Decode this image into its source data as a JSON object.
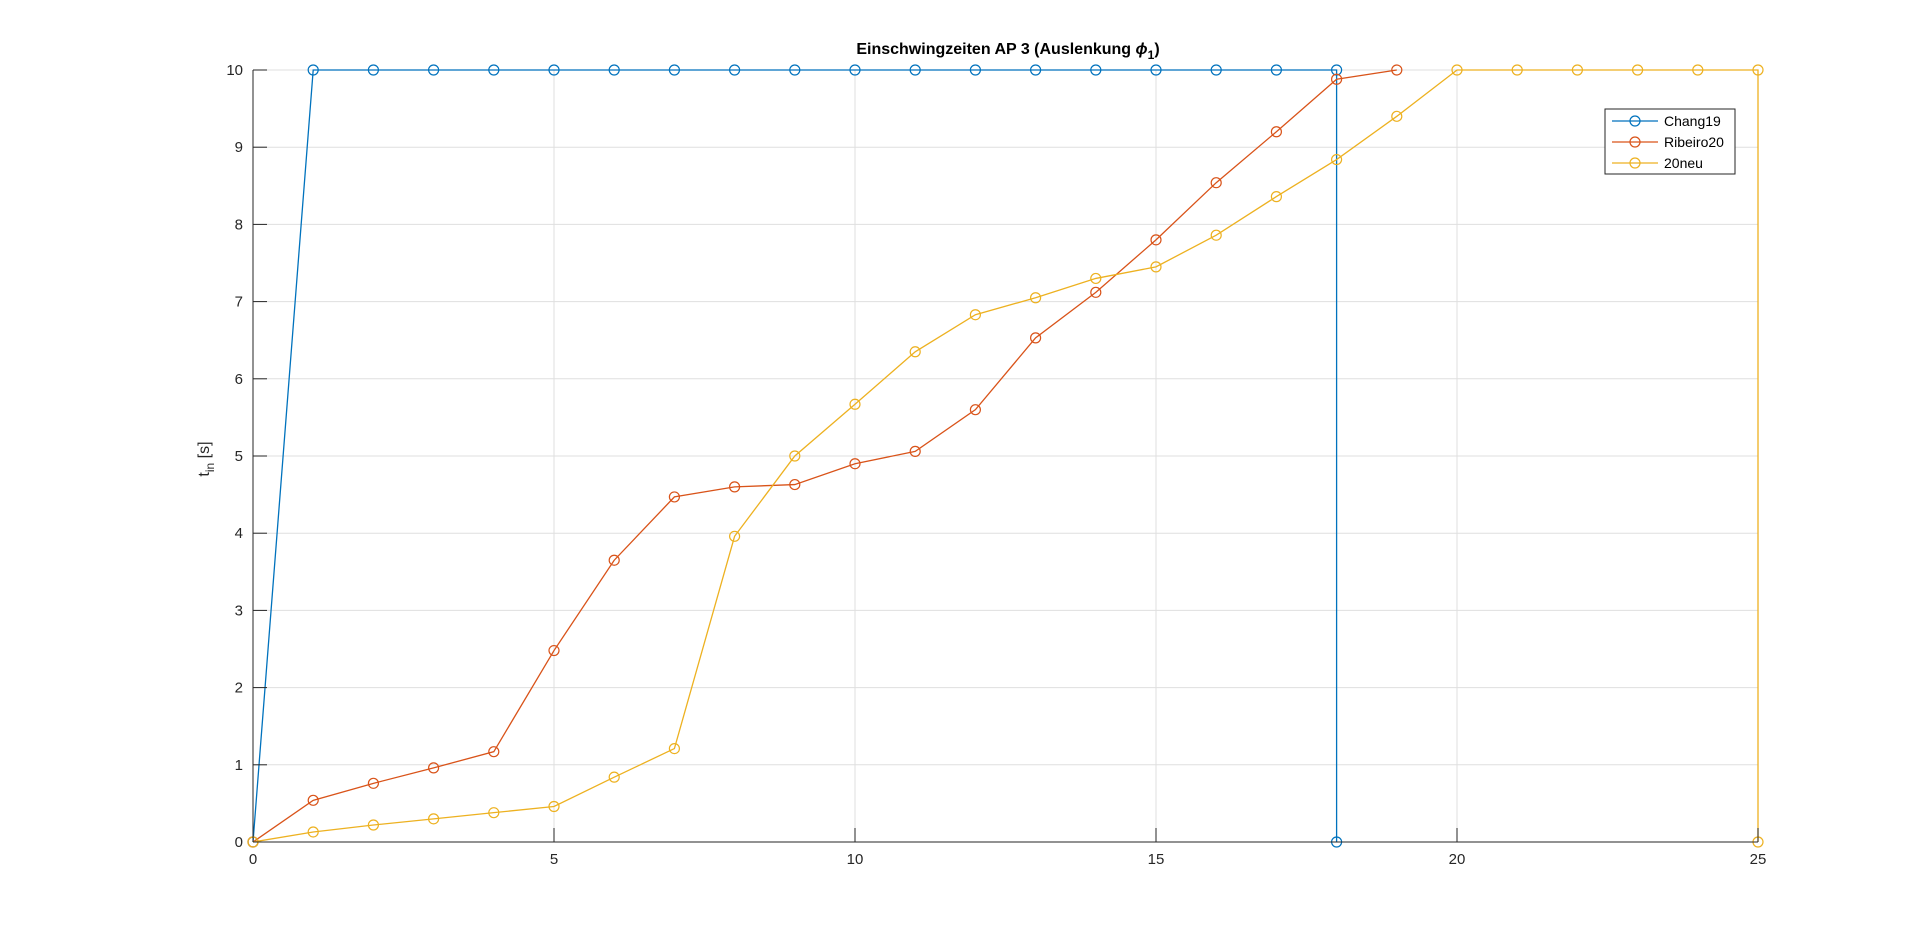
{
  "chart_data": {
    "type": "line",
    "title": "Einschwingzeiten AP 3 (Auslenkung ϕ₁)",
    "title_parts": {
      "main": "Einschwingzeiten AP 3 (Auslenkung ",
      "symbol": "ϕ",
      "subscript": "1",
      "close": ")"
    },
    "ylabel": "t_in [s]",
    "ylabel_parts": {
      "main": "t",
      "subscript": "in",
      "unit": " [s]"
    },
    "xlabel": "",
    "xlim": [
      0,
      25
    ],
    "ylim": [
      0,
      10
    ],
    "xticks": [
      0,
      5,
      10,
      15,
      20,
      25
    ],
    "yticks": [
      0,
      1,
      2,
      3,
      4,
      5,
      6,
      7,
      8,
      9,
      10
    ],
    "grid": true,
    "legend_position": "top-right",
    "series": [
      {
        "name": "Chang19",
        "color": "#0072BD",
        "marker": "circle",
        "x": [
          0,
          1,
          2,
          3,
          4,
          5,
          6,
          7,
          8,
          9,
          10,
          11,
          12,
          13,
          14,
          15,
          16,
          17,
          18,
          18
        ],
        "y": [
          0,
          10,
          10,
          10,
          10,
          10,
          10,
          10,
          10,
          10,
          10,
          10,
          10,
          10,
          10,
          10,
          10,
          10,
          10,
          0
        ]
      },
      {
        "name": "Ribeiro20",
        "color": "#D95319",
        "marker": "circle",
        "x": [
          0,
          1,
          2,
          3,
          4,
          5,
          6,
          7,
          8,
          9,
          10,
          11,
          12,
          13,
          14,
          15,
          16,
          17,
          18,
          19
        ],
        "y": [
          0,
          0.54,
          0.76,
          0.96,
          1.17,
          2.48,
          3.65,
          4.47,
          4.6,
          4.63,
          4.9,
          5.06,
          5.6,
          6.53,
          7.12,
          7.8,
          8.54,
          9.2,
          9.88,
          10
        ]
      },
      {
        "name": "20neu",
        "color": "#EDB120",
        "marker": "circle",
        "x": [
          0,
          1,
          2,
          3,
          4,
          5,
          6,
          7,
          8,
          9,
          10,
          11,
          12,
          13,
          14,
          15,
          16,
          17,
          18,
          19,
          20,
          21,
          22,
          23,
          24,
          25,
          25
        ],
        "y": [
          0,
          0.13,
          0.22,
          0.3,
          0.38,
          0.46,
          0.84,
          1.21,
          3.96,
          5.0,
          5.67,
          6.35,
          6.83,
          7.05,
          7.3,
          7.45,
          7.86,
          8.36,
          8.84,
          9.4,
          10,
          10,
          10,
          10,
          10,
          10,
          0
        ]
      }
    ]
  }
}
